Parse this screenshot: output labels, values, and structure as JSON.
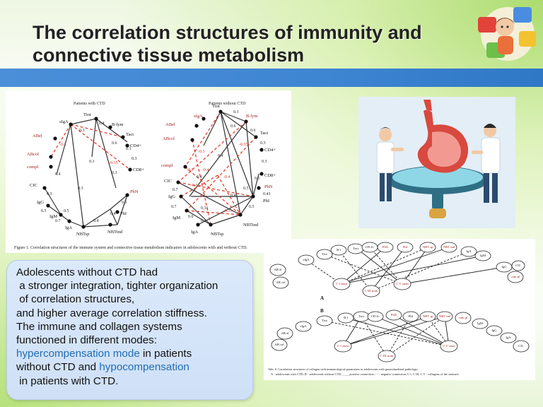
{
  "title": {
    "line1": "The correlation structures of immunity and",
    "line2": "connective tissue metabolism"
  },
  "figure1": {
    "left_heading": "Patients with CTD",
    "right_heading": "Patients without CTD",
    "caption": "Figure 1. Correlation structures of the immune system and connective tissue metabolism indicators in adolescents with and without CTD.",
    "left_nodes": [
      "Ttot",
      "B-lym",
      "Tact",
      "CD4+",
      "CD8+",
      "PhN",
      "PhI",
      "NBTind",
      "NBTsp",
      "IgA",
      "IgM",
      "IgG",
      "CIC",
      "compl",
      "ABcol",
      "ABel",
      "sIgA"
    ],
    "right_nodes": [
      "Ttot",
      "B-lym",
      "Tact",
      "CD4+",
      "CD8+",
      "PhN",
      "PhI",
      "NBTind",
      "NBTsp",
      "IgA",
      "IgM",
      "IgG",
      "CIC",
      "compl",
      "ABcol",
      "ABel",
      "sIgA"
    ],
    "left_edge_labels": [
      "0.4",
      "0.3",
      "0.3",
      "0.6",
      "0.3",
      "-0.35",
      "-0.3",
      "0.4",
      "0.3",
      "0.3",
      "0.5",
      "0.5",
      "0.7",
      "0.5",
      "0.4",
      "0.4",
      "0.3",
      "0.3"
    ],
    "right_edge_labels": [
      "0.3",
      "0.6",
      "0.6",
      "0.3",
      "-0.35",
      "0.3",
      "-0.3",
      "-0.3",
      "0.4",
      "-0.4",
      "-0.4",
      "0.4",
      "0.5",
      "0.43",
      "0.7",
      "0.31",
      "0.7",
      "-0.5",
      "0.6",
      "0.3",
      "-0.33",
      "0.4",
      "0.5",
      "0.5"
    ]
  },
  "figure6": {
    "caption_line1": "Abb. 6. Correlation structures of collagen with immunological parameters in adolescents with gastroduodenal pathology:",
    "caption_line2": "A - adolescents with CTD; B - adolescents without CTD; ____ positive connection; - - - negative connection; C I, C III, C V - collagens of the stomach",
    "label_a": "A",
    "label_b": "B",
    "nodes_a": [
      "AB el",
      "AB col",
      "sIgA",
      "Ttot",
      "B-l",
      "Tact",
      "CD 4+",
      "PhN",
      "PhI",
      "NBT sp",
      "NBT ind",
      "IgA",
      "IgM",
      "IgG",
      "CIC",
      "com pl",
      "C I stom",
      "C III stom",
      "C V stom"
    ],
    "nodes_b": [
      "AB col",
      "AB el",
      "sIgA",
      "Ttot",
      "B-l",
      "Tact",
      "CD 4+",
      "PhN",
      "PhI",
      "NBT sp",
      "NBT ind",
      "com pl",
      "IgM",
      "IgG",
      "IgA",
      "CIC",
      "C I stom",
      "C III stom",
      "C V stom"
    ]
  },
  "textbox": {
    "line1": "Adolescents without CTD had",
    "line2": "a stronger integration, tighter organization",
    "line3": "of correlation structures,",
    "line4": "and higher average correlation stiffness.",
    "line5": "The immune and collagen systems",
    "line6": "functioned in different modes:",
    "hyper": "hypercompensation mode",
    "line7_rest": " in patients",
    "line8_start": "without CTD and ",
    "hypo": "hypocompensation",
    "line9": "in patients with CTD."
  },
  "colors": {
    "band": "#3e85d2",
    "highlight": "#1f6db5",
    "textbox_bg": "#d5e4f9",
    "negative_edge": "#e0402c"
  }
}
